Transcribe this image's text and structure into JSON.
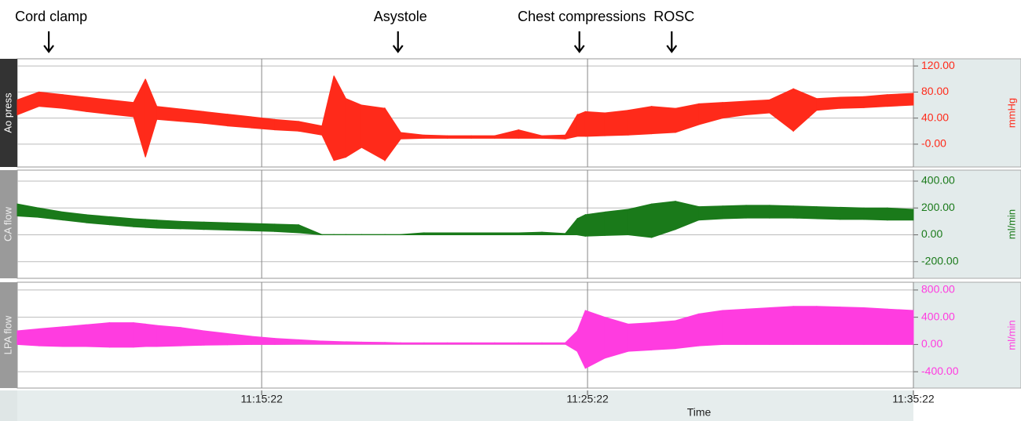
{
  "chart_data": {
    "type": "multi-panel-band",
    "x": [
      40072,
      40112,
      40156,
      40199,
      40242,
      40286,
      40308,
      40329,
      40373,
      40416,
      40459,
      40503,
      40546,
      40590,
      40633,
      40655,
      40677,
      40706,
      40749,
      40778,
      40821,
      40864,
      40908,
      40951,
      40995,
      41038,
      41081,
      41103,
      41118,
      41154,
      41197,
      41240,
      41284,
      41327,
      41371,
      41414,
      41457,
      41501,
      41544,
      41587,
      41631,
      41674,
      41722
    ],
    "xlim": [
      40072,
      41722
    ],
    "xticks": [
      {
        "value": 40522,
        "label": "11:15:22"
      },
      {
        "value": 41122,
        "label": "11:25:22"
      },
      {
        "value": 41722,
        "label": "11:35:22"
      }
    ],
    "xlabel": "Time",
    "annotations": [
      {
        "text": "Cord clamp",
        "x": 40130
      },
      {
        "text": "Asystole",
        "x": 40773
      },
      {
        "text": "Chest compressions",
        "x": 41107
      },
      {
        "text": "ROSC",
        "x": 41277
      }
    ],
    "panels": [
      {
        "label": "Ao press",
        "unit": "mmHg",
        "color": "#ff2a1a",
        "ylim": [
          -35,
          131
        ],
        "yticks": [
          {
            "value": 0,
            "label": "-0.00"
          },
          {
            "value": 40,
            "label": "40.00"
          },
          {
            "value": 80,
            "label": "80.00"
          },
          {
            "value": 120,
            "label": "120.00"
          }
        ],
        "high": [
          68,
          80,
          76,
          72,
          68,
          64,
          100,
          58,
          54,
          50,
          46,
          42,
          38,
          35,
          28,
          105,
          70,
          60,
          55,
          18,
          14,
          13,
          13,
          13,
          22,
          13,
          14,
          45,
          50,
          48,
          52,
          58,
          55,
          62,
          64,
          66,
          68,
          85,
          70,
          72,
          73,
          76,
          78
        ],
        "low": [
          45,
          58,
          55,
          50,
          46,
          42,
          -20,
          38,
          35,
          32,
          28,
          25,
          22,
          20,
          14,
          -25,
          -20,
          -5,
          -25,
          8,
          9,
          9,
          9,
          9,
          9,
          9,
          8,
          12,
          12,
          13,
          14,
          16,
          18,
          30,
          40,
          45,
          48,
          20,
          52,
          55,
          56,
          58,
          60
        ]
      },
      {
        "label": "CA flow",
        "unit": "ml/min",
        "color": "#1a7a1a",
        "ylim": [
          -324,
          482
        ],
        "yticks": [
          {
            "value": -200,
            "label": "-200.00"
          },
          {
            "value": 0,
            "label": "0.00"
          },
          {
            "value": 200,
            "label": "200.00"
          },
          {
            "value": 400,
            "label": "400.00"
          }
        ],
        "high": [
          230,
          200,
          170,
          150,
          135,
          120,
          115,
          110,
          100,
          95,
          90,
          85,
          80,
          75,
          2,
          2,
          2,
          2,
          2,
          2,
          15,
          15,
          15,
          15,
          15,
          20,
          10,
          120,
          150,
          170,
          190,
          230,
          250,
          210,
          215,
          220,
          220,
          215,
          210,
          205,
          200,
          200,
          190
        ],
        "low": [
          140,
          130,
          110,
          90,
          75,
          60,
          55,
          50,
          45,
          40,
          35,
          30,
          25,
          15,
          0,
          0,
          0,
          0,
          0,
          0,
          0,
          0,
          0,
          0,
          0,
          0,
          0,
          0,
          -10,
          -5,
          0,
          -20,
          40,
          110,
          120,
          125,
          125,
          125,
          120,
          115,
          115,
          110,
          110
        ]
      },
      {
        "label": "LPA flow",
        "unit": "ml/min",
        "color": "#ff3ce0",
        "ylim": [
          -640,
          914
        ],
        "yticks": [
          {
            "value": -400,
            "label": "-400.00"
          },
          {
            "value": 0,
            "label": "0.00"
          },
          {
            "value": 400,
            "label": "400.00"
          },
          {
            "value": 800,
            "label": "800.00"
          }
        ],
        "high": [
          200,
          230,
          260,
          290,
          320,
          320,
          300,
          280,
          250,
          200,
          160,
          120,
          90,
          70,
          50,
          45,
          40,
          35,
          30,
          25,
          25,
          25,
          25,
          25,
          25,
          25,
          25,
          200,
          500,
          400,
          300,
          320,
          350,
          450,
          500,
          520,
          540,
          560,
          560,
          550,
          540,
          520,
          500
        ],
        "low": [
          0,
          -20,
          -30,
          -30,
          -40,
          -40,
          -30,
          -30,
          -20,
          -10,
          -5,
          0,
          0,
          5,
          5,
          5,
          5,
          5,
          5,
          5,
          5,
          5,
          5,
          5,
          5,
          5,
          5,
          -100,
          -350,
          -200,
          -100,
          -80,
          -60,
          -20,
          0,
          0,
          0,
          0,
          0,
          0,
          0,
          0,
          0
        ]
      }
    ]
  }
}
